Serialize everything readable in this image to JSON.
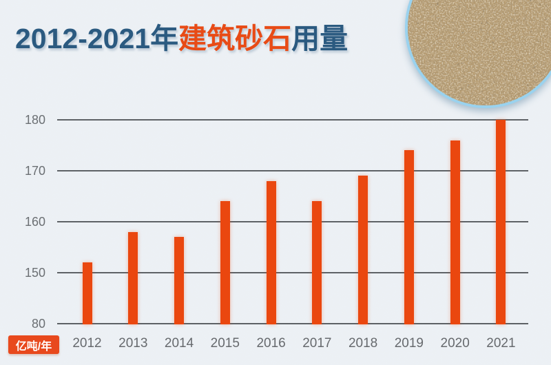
{
  "header": {
    "title_prefix": "2012-2021年",
    "title_highlight": "建筑砂石",
    "title_suffix": "用量",
    "title_color": "#2b5a80",
    "highlight_color": "#e84b16"
  },
  "unit_badge": {
    "label": "亿吨/年",
    "background": "#e8491d",
    "text_color": "#ffffff"
  },
  "decor": {
    "sand_photo": "sand-gravel-circle-photo",
    "photo_border_color": "#9ad2ee"
  },
  "chart_data": {
    "type": "bar",
    "title": "2012-2021年建筑砂石用量",
    "categories": [
      "2012",
      "2013",
      "2014",
      "2015",
      "2016",
      "2017",
      "2018",
      "2019",
      "2020",
      "2021"
    ],
    "values": [
      152,
      158,
      157,
      164,
      168,
      164,
      169,
      174,
      176,
      180
    ],
    "unit": "亿吨/年",
    "xlabel": "",
    "ylabel": "亿吨/年",
    "y_ticks": [
      80,
      150,
      160,
      170,
      180
    ],
    "ylim": [
      80,
      180
    ],
    "axis_break_between": [
      80,
      150
    ],
    "grid": true,
    "legend": false,
    "bar_color": "#ea470f",
    "grid_color": "#5d6165",
    "tick_label_color": "#6b6f73",
    "background_color": "#edf1f5"
  }
}
